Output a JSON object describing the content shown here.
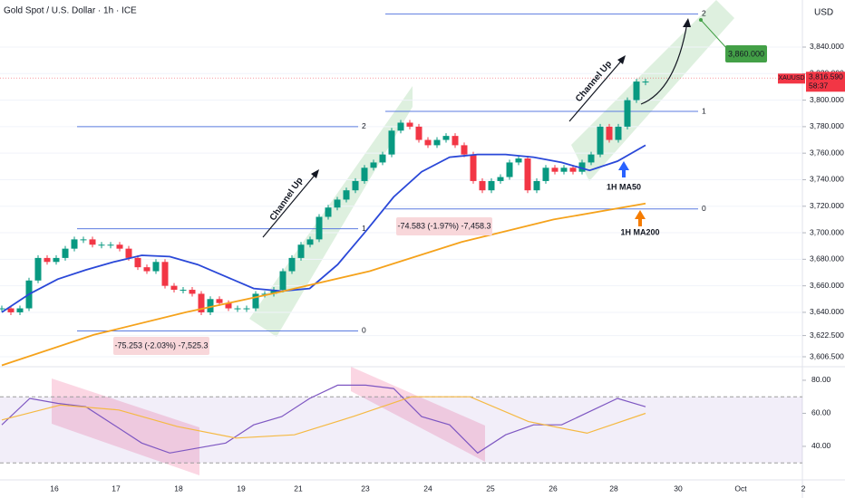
{
  "chart_data": {
    "type": "candlestick",
    "title": "Gold Spot / U.S. Dollar · 1h · ICE",
    "currency": "USD",
    "ylim": [
      3599,
      3875.5
    ],
    "yticks": [
      {
        "value": 3840,
        "label": "3,840.000"
      },
      {
        "value": 3820,
        "label": "3,820.000"
      },
      {
        "value": 3800,
        "label": "3,800.000"
      },
      {
        "value": 3780,
        "label": "3,780.000"
      },
      {
        "value": 3760,
        "label": "3,760.000"
      },
      {
        "value": 3740,
        "label": "3,740.000"
      },
      {
        "value": 3720,
        "label": "3,720.000"
      },
      {
        "value": 3700,
        "label": "3,700.000"
      },
      {
        "value": 3680,
        "label": "3,680.000"
      },
      {
        "value": 3660,
        "label": "3,660.000"
      },
      {
        "value": 3640,
        "label": "3,640.000"
      },
      {
        "value": 3622.5,
        "label": "3,622.500"
      },
      {
        "value": 3606.5,
        "label": "3,606.500"
      }
    ],
    "xticks": [
      "16",
      "17",
      "18",
      "19",
      "21",
      "23",
      "24",
      "25",
      "26",
      "28",
      "30",
      "Oct",
      "2"
    ],
    "series": [
      {
        "name": "XAUUSD",
        "color": "#089981",
        "down_color": "#f23645",
        "values": [
          3643,
          3640,
          3643,
          3664,
          3681,
          3678,
          3681,
          3688,
          3695,
          3695,
          3691,
          3691,
          3691,
          3688,
          3681,
          3674,
          3671,
          3678,
          3660,
          3657,
          3657,
          3654,
          3640,
          3650,
          3647,
          3643,
          3643,
          3643,
          3654,
          3654,
          3657,
          3671,
          3681,
          3691,
          3695,
          3712,
          3719,
          3725,
          3732,
          3739,
          3749,
          3753,
          3759,
          3777,
          3783,
          3780,
          3770,
          3766,
          3770,
          3773,
          3766,
          3759,
          3739,
          3732,
          3739,
          3742,
          3753,
          3756,
          3732,
          3739,
          3749,
          3746,
          3749,
          3746,
          3753,
          3759,
          3780,
          3770,
          3780,
          3800,
          3814,
          3814
        ]
      },
      {
        "name": "1H MA50",
        "color": "#2a48d8",
        "values": [
          3640,
          3654,
          3665,
          3672,
          3678,
          3683,
          3682,
          3676,
          3667,
          3658,
          3656,
          3658,
          3676,
          3701,
          3727,
          3746,
          3757,
          3759,
          3759,
          3757,
          3753,
          3747,
          3754,
          3766
        ]
      },
      {
        "name": "1H MA200",
        "color": "#f5a21b",
        "values": [
          3600,
          3623,
          3640,
          3655,
          3671,
          3693,
          3710,
          3722
        ]
      }
    ],
    "last_price": {
      "value": 3816.59,
      "label": "3,816.590",
      "symbol": "XAUUSD",
      "countdown": "58:37",
      "color": "#f23645"
    },
    "target": {
      "value": 3860,
      "label": "3,860.000",
      "color": "#43a047"
    },
    "fib_left": [
      {
        "level": 2,
        "price": 3780
      },
      {
        "level": 1,
        "price": 3703
      },
      {
        "level": 0,
        "price": 3626
      }
    ],
    "fib_right": [
      {
        "level": 2,
        "price": 3865
      },
      {
        "level": 1,
        "price": 3791.5
      },
      {
        "level": 0,
        "price": 3718
      }
    ],
    "measures": [
      "-75.253 (-2.03%) -7,525.3",
      "-74.583 (-1.97%) -7,458.3"
    ],
    "annotations": [
      "Channel Up",
      "Channel Up",
      "1H MA50",
      "1H MA200"
    ],
    "rsi": {
      "ylim": [
        19.7,
        88.2
      ],
      "yticks": [
        {
          "value": 80,
          "label": "80.00"
        },
        {
          "value": 60,
          "label": "60.00"
        },
        {
          "value": 40,
          "label": "40.00"
        }
      ],
      "band": [
        30,
        70
      ],
      "series": [
        {
          "name": "RSI",
          "color": "#7e57c2",
          "values": [
            53,
            69,
            66,
            64,
            53,
            42,
            36,
            39,
            42,
            53,
            58,
            69,
            77,
            77,
            75,
            58,
            53,
            36,
            47,
            53,
            53,
            61,
            69,
            64
          ]
        },
        {
          "name": "RSI MA",
          "color": "#f5b942",
          "values": [
            56,
            65,
            62,
            52,
            45,
            47,
            58,
            70,
            70,
            55,
            48,
            60
          ]
        }
      ]
    }
  }
}
